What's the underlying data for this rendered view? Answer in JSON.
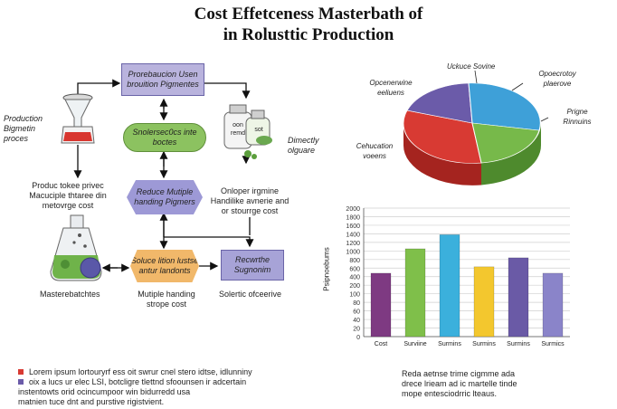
{
  "header": {
    "title_line1": "Cost Effetceness Masterbath of",
    "title_line2": "in Rolusttic Production"
  },
  "flow": {
    "box_top": "Prorebaucion Usen brouition Pigmentes",
    "box_green": "Snolersec0cs inte boctes",
    "box_hex_purple": "Reduce Mutiple handing Pigmers",
    "box_hex_orange": "Soluce lition lustse antur landonts",
    "box_right": "Recwrthe Sugnonim",
    "label_production": "Production Bigmetin proces",
    "label_flask": "Produc tokee privec Macuciple thtaree din metovrge cost",
    "label_masterbatch": "Masterebatchtes",
    "label_handling": "Mutiple handing strope cost",
    "label_directly": "Dimectly olguare",
    "label_onloper": "Onloper irgmine Handilike avnerie and or stourrge cost",
    "label_solertic": "Solertic ofceerive",
    "jar_label1": "oon remd",
    "jar_label2": "sot"
  },
  "pie": {
    "labels": [
      "Uckuce Sovine",
      "Opoecrotoy plaerove",
      "Prigne Rinnuins",
      "Cehucation voeens",
      "Opcenerwine eeliuens"
    ],
    "colors": {
      "red": "#d83a33",
      "blue": "#3ea0d8",
      "green": "#77b94a",
      "purple": "#6b5ba9"
    }
  },
  "chart_data": {
    "type": "bar",
    "categories": [
      "Cost",
      "Surviine",
      "Surmins",
      "Surmins",
      "Surmins",
      "Surmics"
    ],
    "values": [
      480,
      1050,
      1380,
      630,
      840,
      480
    ],
    "colors": [
      "#7e3a82",
      "#7fbf4a",
      "#3bb0dc",
      "#f3c72e",
      "#6a5aa6",
      "#8a84c9"
    ],
    "title": "",
    "xlabel": "",
    "ylabel": "Psipnoebums",
    "ylim": [
      0,
      2000
    ],
    "yticks": [
      0,
      20,
      40,
      60,
      80,
      100,
      200,
      400,
      600,
      800,
      1000,
      1200,
      1400,
      1600,
      1800,
      2000
    ],
    "grid": true
  },
  "footer": {
    "legend_line1": "Lorem ipsum lortouryrf ess oit swrur cnel stero idtse, idlunniny",
    "legend_line2": "oix a lucs ur elec LSI, botcligre tlettnd sfoounsen ir adcertain",
    "legend_line3": "instentowts orid ocincumpoor win bidurredd usa",
    "legend_line4": "matnien tuce dnt and purstive rigistvient.",
    "note_line1": "Reda aetnse trime cigmme ada",
    "note_line2": "drece lrieam ad ic martelle tinde",
    "note_line3": "mope entesciodrric lteaus.",
    "legend_colors": [
      "#d83a33",
      "#6b5ba9"
    ]
  }
}
